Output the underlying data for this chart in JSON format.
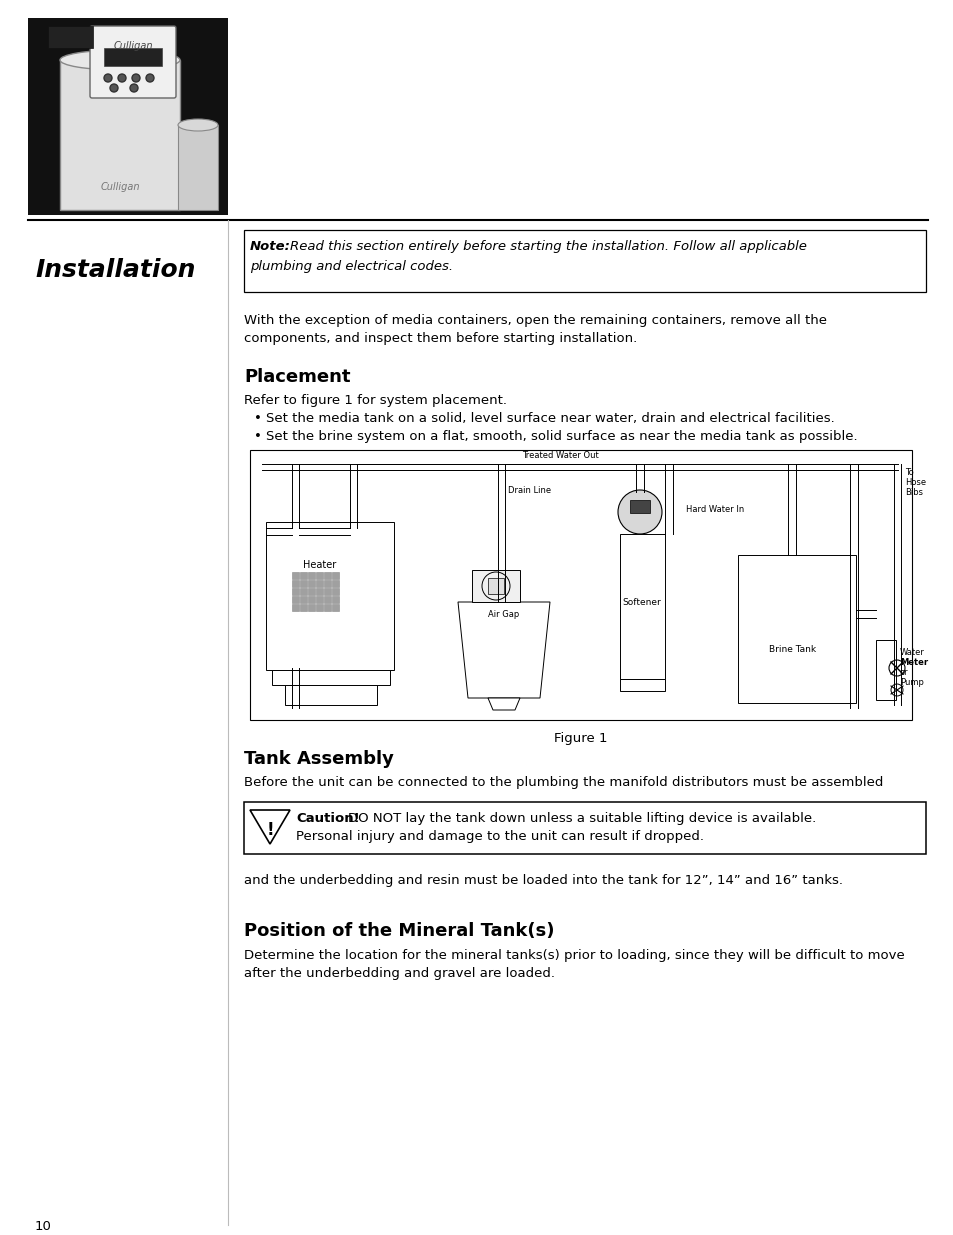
{
  "page_bg": "#ffffff",
  "text_color": "#000000",
  "installation_title": "Installation",
  "note_bold": "Note:",
  "note_italic_1": "Read this section entirely before starting the installation. Follow all applicable",
  "note_italic_2": "plumbing and electrical codes.",
  "intro_text_1": "With the exception of media containers, open the remaining containers, remove all the",
  "intro_text_2": "components, and inspect them before starting installation.",
  "placement_title": "Placement",
  "placement_sub": "Refer to figure 1 for system placement.",
  "bullet1": "Set the media tank on a solid, level surface near water, drain and electrical facilities.",
  "bullet2": "Set the brine system on a flat, smooth, solid surface as near the media tank as possible.",
  "figure_caption": "Figure 1",
  "tank_assembly_title": "Tank Assembly",
  "tank_assembly_text": "Before the unit can be connected to the plumbing the manifold distributors must be assembled",
  "caution_bold": "Caution!",
  "caution_rest": "DO NOT lay the tank down unless a suitable lifting device is available.",
  "caution_line2": "Personal injury and damage to the unit can result if dropped.",
  "after_caution": "and the underbedding and resin must be loaded into the tank for 12”, 14” and 16” tanks.",
  "mineral_title": "Position of the Mineral Tank(s)",
  "mineral_text_1": "Determine the location for the mineral tanks(s) prior to loading, since they will be difficult to move",
  "mineral_text_2": "after the underbedding and gravel are loaded.",
  "page_number": "10",
  "body_fs": 9.5,
  "section_fs": 13,
  "install_fs": 18
}
